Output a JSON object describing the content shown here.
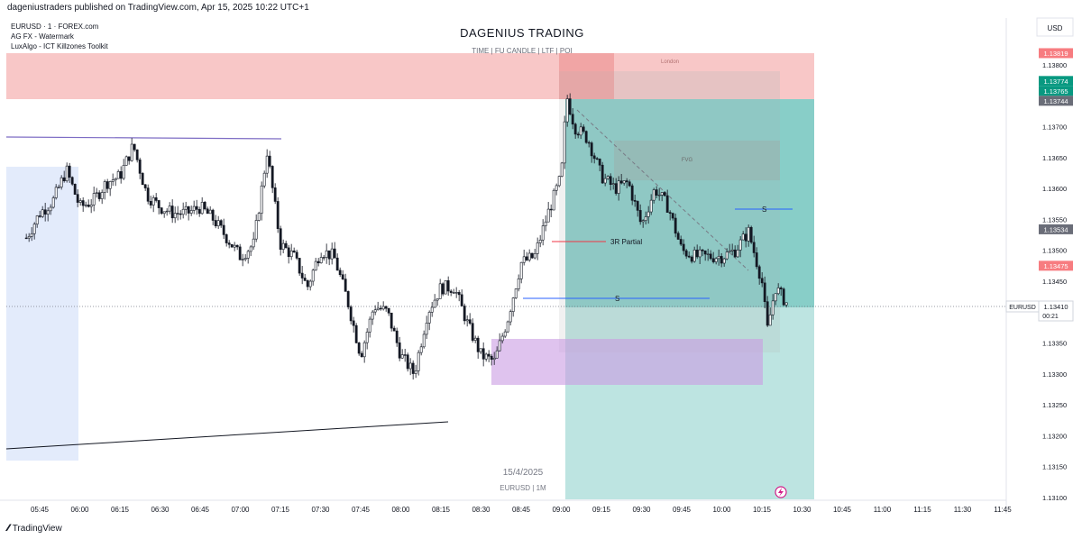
{
  "publish_line": "dageniustraders published on TradingView.com, Apr 15, 2025 10:22 UTC+1",
  "legend": [
    "EURUSD · 1 · FOREX.com",
    "AG FX - Watermark",
    "LuxAlgo - ICT Killzones Toolkit"
  ],
  "header": {
    "title": "DAGENIUS TRADING",
    "subtitle": "TIME  |  FU CANDLE  |  LTF  |  POI"
  },
  "currency": "USD",
  "watermark": {
    "date": "15/4/2025",
    "symbol": "EURUSD | 1M"
  },
  "annotations": {
    "partial": "3R Partial",
    "s_low": "S",
    "s_high": "S",
    "london": "London",
    "fvg": "FVG"
  },
  "brand": "TradingView",
  "colors": {
    "up": "#131722",
    "down": "#131722",
    "london": "#f8c4c4",
    "target": "#26a69a",
    "stop": "#f23645",
    "asia": "#e3ebfb",
    "demand": "#d9b3ea"
  },
  "chart_data": {
    "type": "candlestick",
    "title": "DAGENIUS TRADING",
    "symbol": "EURUSD",
    "timeframe": "1",
    "x_ticks": [
      "05:45",
      "06:00",
      "06:15",
      "06:30",
      "06:45",
      "07:00",
      "07:15",
      "07:30",
      "07:45",
      "08:00",
      "08:15",
      "08:30",
      "08:45",
      "09:00",
      "09:15",
      "09:30",
      "09:45",
      "10:00",
      "10:15",
      "10:30",
      "10:45",
      "11:00",
      "11:15",
      "11:30",
      "11:45"
    ],
    "y_ticks": [
      "1.13800",
      "1.13700",
      "1.13650",
      "1.13600",
      "1.13550",
      "1.13500",
      "1.13450",
      "1.13350",
      "1.13300",
      "1.13250",
      "1.13200",
      "1.13150",
      "1.13100"
    ],
    "ylim": [
      1.1308,
      1.1384
    ],
    "price_tags": [
      {
        "value": "1.13819",
        "type": "stop"
      },
      {
        "value": "1.13774",
        "type": "entry"
      },
      {
        "value": "1.13765",
        "type": "entry"
      },
      {
        "value": "1.13744",
        "type": "gray"
      },
      {
        "value": "1.13534",
        "type": "gray"
      },
      {
        "value": "1.13475",
        "type": "stop"
      }
    ],
    "last": {
      "symbol": "EURUSD",
      "price": "1.13410",
      "countdown": "00:21"
    },
    "levels": {
      "stop_top": 1.1382,
      "entry": 1.13745,
      "target": 1.1309,
      "last": 1.1341
    },
    "series_anchors": [
      [
        "05:40",
        1.1352
      ],
      [
        "05:45",
        1.1356
      ],
      [
        "05:50",
        1.1358
      ],
      [
        "05:55",
        1.1363
      ],
      [
        "06:00",
        1.1357
      ],
      [
        "06:05",
        1.1358
      ],
      [
        "06:10",
        1.1361
      ],
      [
        "06:15",
        1.1362
      ],
      [
        "06:20",
        1.1367
      ],
      [
        "06:25",
        1.1359
      ],
      [
        "06:30",
        1.1357
      ],
      [
        "06:35",
        1.1356
      ],
      [
        "06:40",
        1.1356
      ],
      [
        "06:45",
        1.1357
      ],
      [
        "06:50",
        1.1355
      ],
      [
        "06:55",
        1.1352
      ],
      [
        "07:00",
        1.1349
      ],
      [
        "07:05",
        1.1351
      ],
      [
        "07:10",
        1.1366
      ],
      [
        "07:15",
        1.1351
      ],
      [
        "07:20",
        1.1349
      ],
      [
        "07:25",
        1.1344
      ],
      [
        "07:30",
        1.135
      ],
      [
        "07:35",
        1.1349
      ],
      [
        "07:40",
        1.1342
      ],
      [
        "07:45",
        1.1333
      ],
      [
        "07:50",
        1.1341
      ],
      [
        "07:55",
        1.134
      ],
      [
        "08:00",
        1.1333
      ],
      [
        "08:05",
        1.133
      ],
      [
        "08:10",
        1.134
      ],
      [
        "08:15",
        1.1344
      ],
      [
        "08:20",
        1.1344
      ],
      [
        "08:25",
        1.1338
      ],
      [
        "08:30",
        1.1333
      ],
      [
        "08:35",
        1.1332
      ],
      [
        "08:40",
        1.1339
      ],
      [
        "08:45",
        1.1348
      ],
      [
        "08:50",
        1.1349
      ],
      [
        "08:55",
        1.1356
      ],
      [
        "09:00",
        1.1362
      ],
      [
        "09:02",
        1.1375
      ],
      [
        "09:05",
        1.137
      ],
      [
        "09:10",
        1.1368
      ],
      [
        "09:15",
        1.1362
      ],
      [
        "09:20",
        1.136
      ],
      [
        "09:25",
        1.1361
      ],
      [
        "09:30",
        1.1354
      ],
      [
        "09:35",
        1.136
      ],
      [
        "09:40",
        1.1357
      ],
      [
        "09:45",
        1.135
      ],
      [
        "09:50",
        1.1349
      ],
      [
        "09:55",
        1.1349
      ],
      [
        "10:00",
        1.1349
      ],
      [
        "10:05",
        1.135
      ],
      [
        "10:10",
        1.1353
      ],
      [
        "10:15",
        1.1345
      ],
      [
        "10:17",
        1.1337
      ],
      [
        "10:20",
        1.1344
      ],
      [
        "10:25",
        1.1341
      ]
    ]
  }
}
